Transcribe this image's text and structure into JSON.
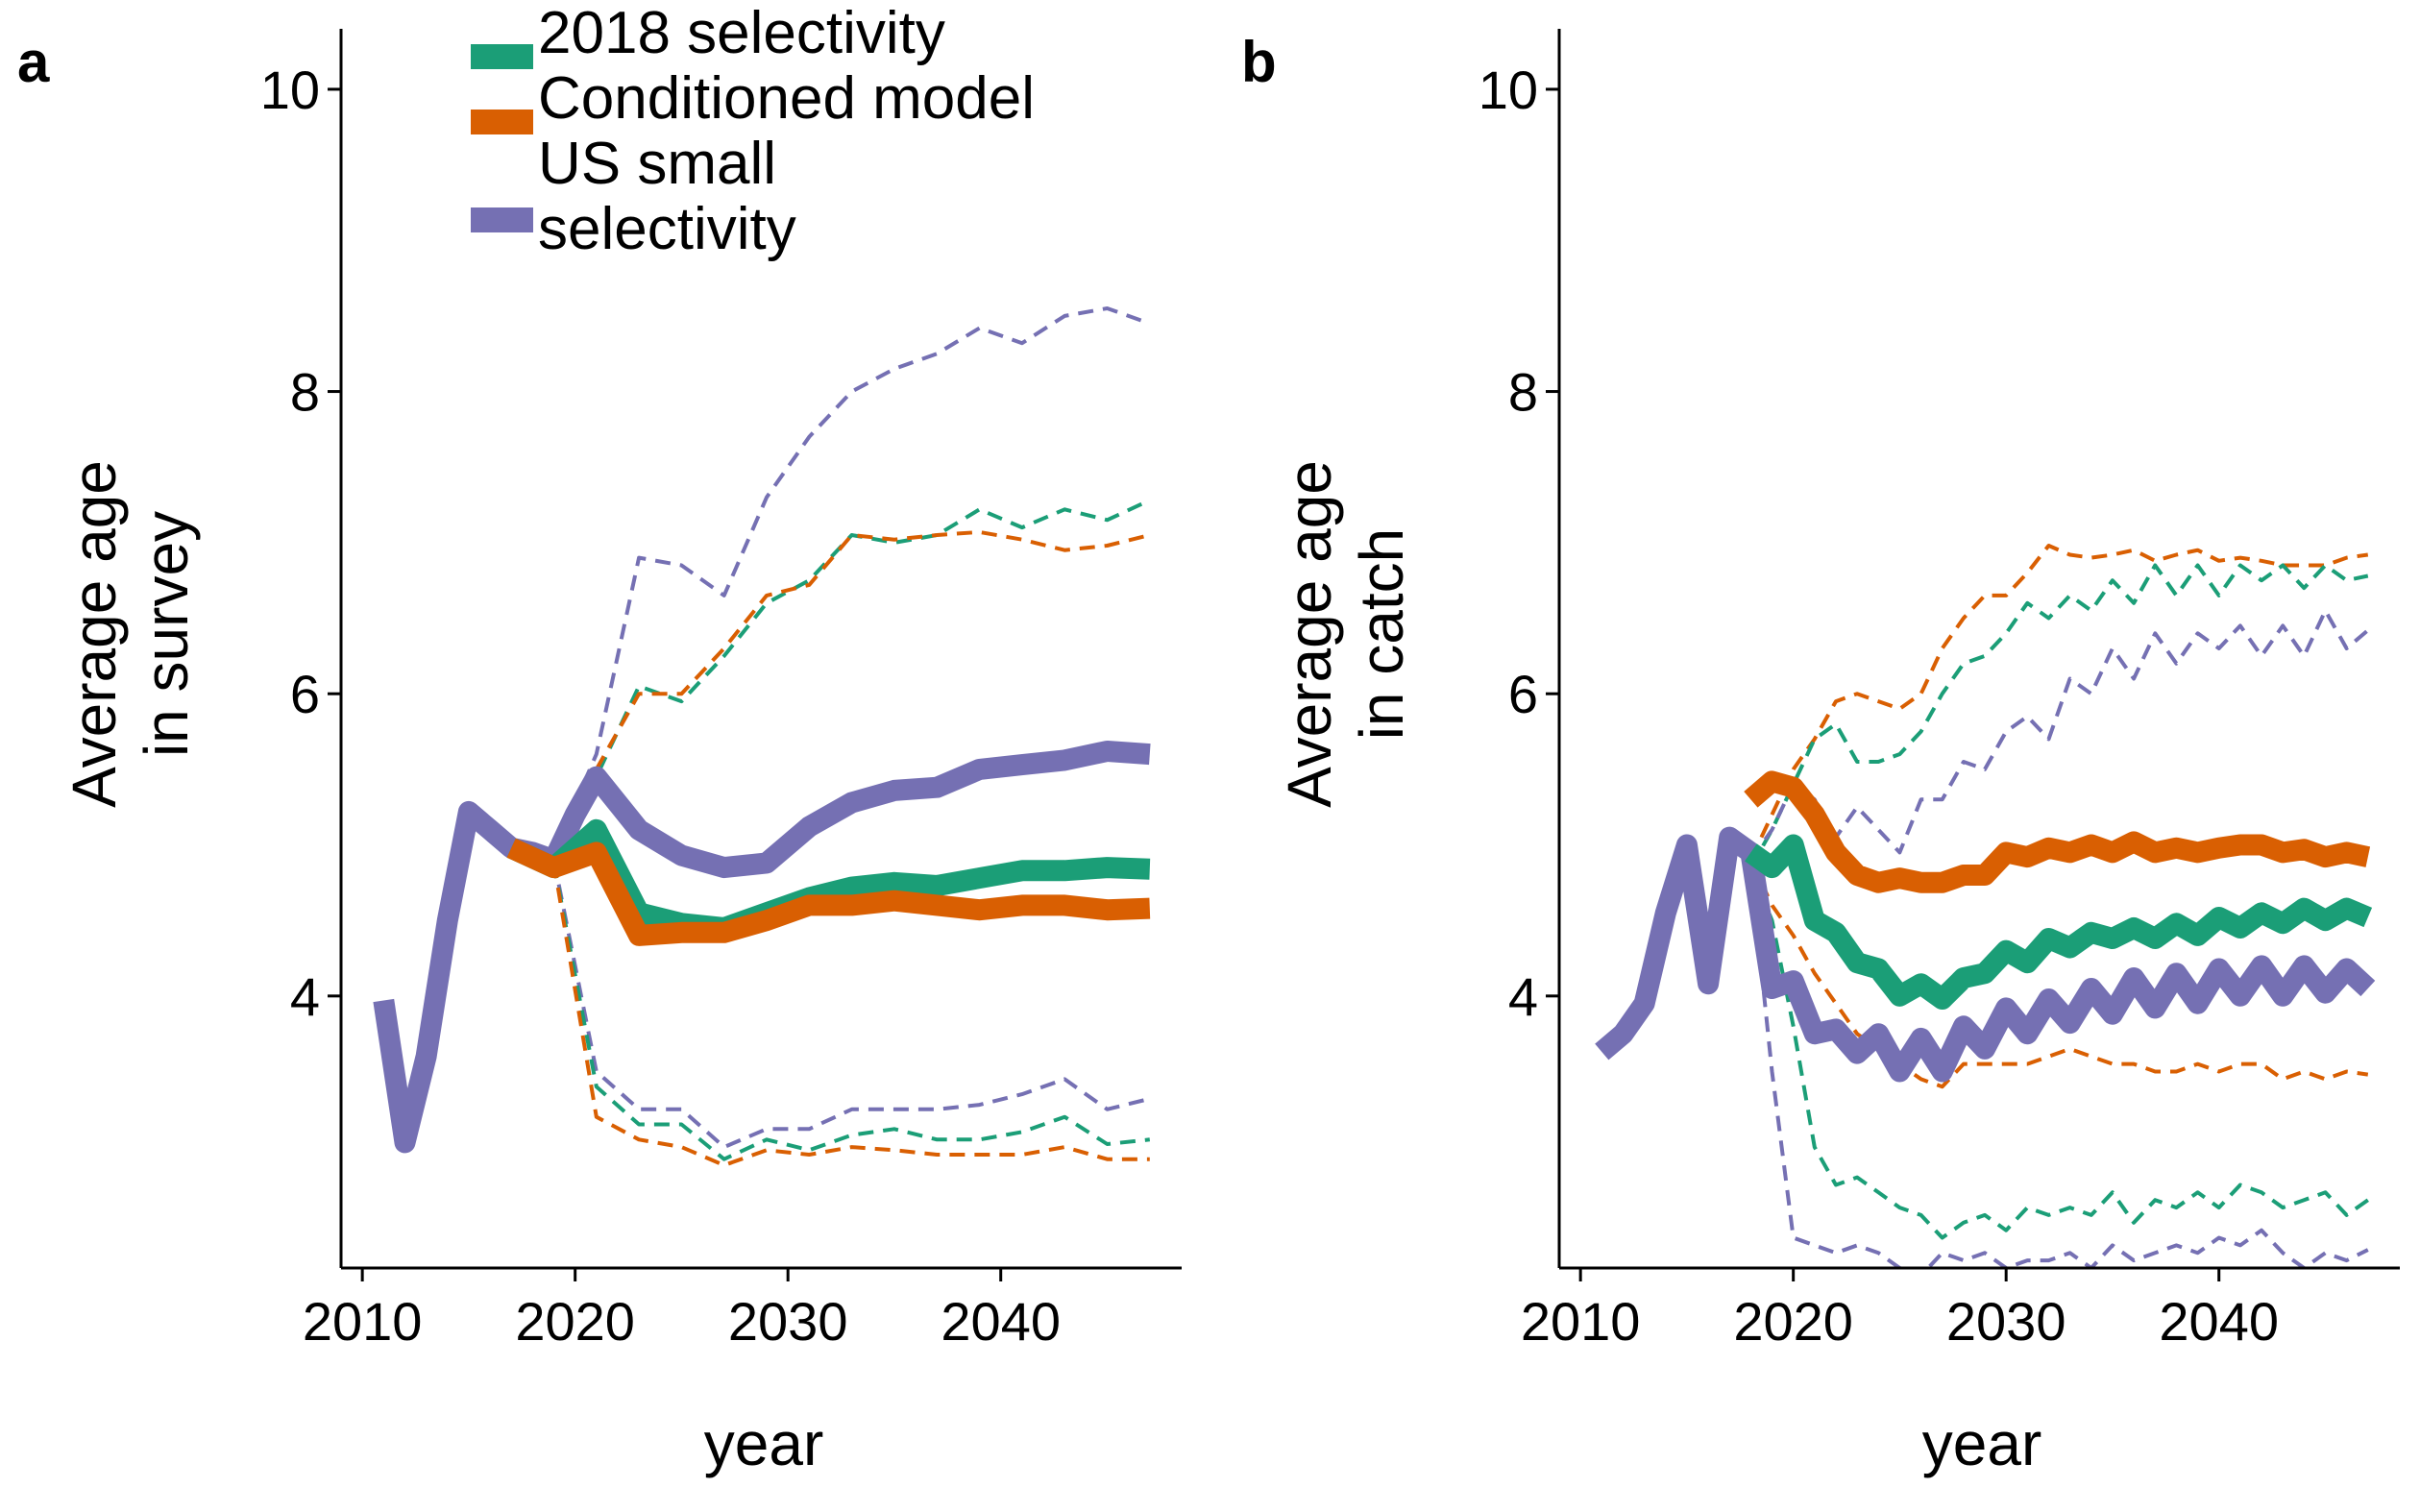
{
  "legend": {
    "placement": "top-left of panel a",
    "entries": [
      {
        "label": "2018 selectivity",
        "color": "#1b9e77"
      },
      {
        "label": "Conditioned model",
        "color": "#d95f02"
      },
      {
        "label": "US small selectivity",
        "color": "#7570b3"
      }
    ]
  },
  "chart_data": [
    {
      "panel": "a",
      "type": "line",
      "xlabel": "year",
      "ylabel": "Average age in survey",
      "xlim": [
        2009,
        2048.5
      ],
      "ylim": [
        2.2,
        10.4
      ],
      "xticks": [
        2010,
        2020,
        2030,
        2040
      ],
      "yticks": [
        4,
        6,
        8,
        10
      ],
      "grid": false,
      "series": [
        {
          "name": "US small selectivity",
          "color": "#7570b3",
          "kind": "median",
          "x": [
            2011,
            2012,
            2013,
            2014,
            2015,
            2016,
            2017,
            2018,
            2019,
            2020,
            2021,
            2023,
            2025,
            2027,
            2029,
            2031,
            2033,
            2035,
            2037,
            2039,
            2041,
            2043,
            2045,
            2047
          ],
          "y": [
            3.97,
            3.03,
            3.6,
            4.5,
            5.22,
            5.1,
            4.98,
            4.95,
            4.9,
            5.2,
            5.45,
            5.1,
            4.93,
            4.85,
            4.88,
            5.12,
            5.28,
            5.36,
            5.38,
            5.5,
            5.53,
            5.56,
            5.62,
            5.6
          ]
        },
        {
          "name": "2018 selectivity",
          "color": "#1b9e77",
          "kind": "median",
          "x": [
            2017,
            2019,
            2021,
            2023,
            2025,
            2027,
            2029,
            2031,
            2033,
            2035,
            2037,
            2039,
            2041,
            2043,
            2045,
            2047
          ],
          "y": [
            4.98,
            4.85,
            5.1,
            4.55,
            4.48,
            4.45,
            4.55,
            4.65,
            4.72,
            4.75,
            4.73,
            4.78,
            4.83,
            4.83,
            4.85,
            4.84
          ]
        },
        {
          "name": "Conditioned model",
          "color": "#d95f02",
          "kind": "median",
          "x": [
            2017,
            2019,
            2021,
            2023,
            2025,
            2027,
            2029,
            2031,
            2033,
            2035,
            2037,
            2039,
            2041,
            2043,
            2045,
            2047
          ],
          "y": [
            4.98,
            4.85,
            4.95,
            4.4,
            4.42,
            4.42,
            4.5,
            4.6,
            4.6,
            4.63,
            4.6,
            4.57,
            4.6,
            4.6,
            4.57,
            4.58
          ]
        },
        {
          "name": "US small selectivity",
          "color": "#7570b3",
          "kind": "upper",
          "x": [
            2019,
            2021,
            2023,
            2025,
            2027,
            2029,
            2031,
            2033,
            2035,
            2037,
            2039,
            2041,
            2043,
            2045,
            2047
          ],
          "y": [
            4.95,
            5.6,
            6.9,
            6.85,
            6.65,
            7.3,
            7.7,
            8.0,
            8.15,
            8.25,
            8.42,
            8.32,
            8.5,
            8.55,
            8.45
          ]
        },
        {
          "name": "2018 selectivity",
          "color": "#1b9e77",
          "kind": "upper",
          "x": [
            2019,
            2021,
            2023,
            2025,
            2027,
            2029,
            2031,
            2033,
            2035,
            2037,
            2039,
            2041,
            2043,
            2045,
            2047
          ],
          "y": [
            4.9,
            5.45,
            6.05,
            5.95,
            6.25,
            6.6,
            6.75,
            7.05,
            7.0,
            7.05,
            7.22,
            7.1,
            7.22,
            7.15,
            7.28
          ]
        },
        {
          "name": "Conditioned model",
          "color": "#d95f02",
          "kind": "upper",
          "x": [
            2019,
            2021,
            2023,
            2025,
            2027,
            2029,
            2031,
            2033,
            2035,
            2037,
            2039,
            2041,
            2043,
            2045,
            2047
          ],
          "y": [
            4.9,
            5.5,
            6.0,
            6.0,
            6.3,
            6.65,
            6.72,
            7.05,
            7.02,
            7.05,
            7.07,
            7.02,
            6.95,
            6.98,
            7.05
          ]
        },
        {
          "name": "US small selectivity",
          "color": "#7570b3",
          "kind": "lower",
          "x": [
            2019,
            2021,
            2023,
            2025,
            2027,
            2029,
            2031,
            2033,
            2035,
            2037,
            2039,
            2041,
            2043,
            2045,
            2047
          ],
          "y": [
            4.9,
            3.5,
            3.25,
            3.25,
            3.0,
            3.12,
            3.12,
            3.25,
            3.25,
            3.25,
            3.28,
            3.35,
            3.45,
            3.25,
            3.32
          ]
        },
        {
          "name": "2018 selectivity",
          "color": "#1b9e77",
          "kind": "lower",
          "x": [
            2019,
            2021,
            2023,
            2025,
            2027,
            2029,
            2031,
            2033,
            2035,
            2037,
            2039,
            2041,
            2043,
            2045,
            2047
          ],
          "y": [
            4.88,
            3.4,
            3.15,
            3.15,
            2.92,
            3.05,
            2.98,
            3.08,
            3.12,
            3.05,
            3.05,
            3.1,
            3.2,
            3.02,
            3.05
          ]
        },
        {
          "name": "Conditioned model",
          "color": "#d95f02",
          "kind": "lower",
          "x": [
            2019,
            2021,
            2023,
            2025,
            2027,
            2029,
            2031,
            2033,
            2035,
            2037,
            2039,
            2041,
            2043,
            2045,
            2047
          ],
          "y": [
            4.88,
            3.2,
            3.05,
            3.0,
            2.88,
            2.98,
            2.95,
            3.0,
            2.98,
            2.95,
            2.95,
            2.95,
            3.0,
            2.92,
            2.92
          ]
        }
      ]
    },
    {
      "panel": "b",
      "type": "line",
      "xlabel": "year",
      "ylabel": "Average age in catch",
      "xlim": [
        2009,
        2048.5
      ],
      "ylim": [
        2.2,
        10.4
      ],
      "xticks": [
        2010,
        2020,
        2030,
        2040
      ],
      "yticks": [
        4,
        6,
        8,
        10
      ],
      "grid": false,
      "series": [
        {
          "name": "US small selectivity",
          "color": "#7570b3",
          "kind": "median",
          "x": [
            2011,
            2012,
            2013,
            2014,
            2015,
            2016,
            2017,
            2018,
            2019,
            2020,
            2021,
            2022,
            2023,
            2024,
            2025,
            2026,
            2027,
            2028,
            2029,
            2030,
            2031,
            2032,
            2033,
            2034,
            2035,
            2036,
            2037,
            2038,
            2039,
            2040,
            2041,
            2042,
            2043,
            2044,
            2045,
            2046,
            2047
          ],
          "y": [
            3.63,
            3.75,
            3.95,
            4.55,
            5.0,
            4.08,
            5.05,
            4.95,
            4.05,
            4.1,
            3.75,
            3.78,
            3.62,
            3.75,
            3.5,
            3.72,
            3.5,
            3.8,
            3.65,
            3.92,
            3.75,
            3.98,
            3.82,
            4.05,
            3.88,
            4.12,
            3.92,
            4.15,
            3.95,
            4.18,
            4.0,
            4.2,
            4.0,
            4.2,
            4.02,
            4.18,
            4.05
          ]
        },
        {
          "name": "2018 selectivity",
          "color": "#1b9e77",
          "kind": "median",
          "x": [
            2018,
            2019,
            2020,
            2021,
            2022,
            2023,
            2024,
            2025,
            2026,
            2027,
            2028,
            2029,
            2030,
            2031,
            2032,
            2033,
            2034,
            2035,
            2036,
            2037,
            2038,
            2039,
            2040,
            2041,
            2042,
            2043,
            2044,
            2045,
            2046,
            2047
          ],
          "y": [
            4.95,
            4.85,
            5.0,
            4.5,
            4.42,
            4.22,
            4.18,
            4.0,
            4.08,
            3.98,
            4.12,
            4.15,
            4.3,
            4.22,
            4.38,
            4.32,
            4.42,
            4.38,
            4.45,
            4.38,
            4.48,
            4.4,
            4.52,
            4.45,
            4.55,
            4.48,
            4.58,
            4.5,
            4.58,
            4.52
          ]
        },
        {
          "name": "Conditioned model",
          "color": "#d95f02",
          "kind": "median",
          "x": [
            2018,
            2019,
            2020,
            2021,
            2022,
            2023,
            2024,
            2025,
            2026,
            2027,
            2028,
            2029,
            2030,
            2031,
            2032,
            2033,
            2034,
            2035,
            2036,
            2037,
            2038,
            2039,
            2040,
            2041,
            2042,
            2043,
            2044,
            2045,
            2046,
            2047
          ],
          "y": [
            5.3,
            5.42,
            5.38,
            5.2,
            4.95,
            4.8,
            4.75,
            4.78,
            4.75,
            4.75,
            4.8,
            4.8,
            4.95,
            4.92,
            4.98,
            4.95,
            5.0,
            4.95,
            5.02,
            4.95,
            4.98,
            4.95,
            4.98,
            5.0,
            5.0,
            4.95,
            4.97,
            4.92,
            4.95,
            4.92
          ]
        },
        {
          "name": "Conditioned model",
          "color": "#d95f02",
          "kind": "upper",
          "x": [
            2018,
            2019,
            2020,
            2021,
            2022,
            2023,
            2024,
            2025,
            2026,
            2027,
            2028,
            2029,
            2030,
            2031,
            2032,
            2033,
            2034,
            2035,
            2036,
            2037,
            2038,
            2039,
            2040,
            2041,
            2042,
            2043,
            2044,
            2045,
            2046,
            2047
          ],
          "y": [
            4.9,
            5.2,
            5.5,
            5.7,
            5.95,
            6.0,
            5.95,
            5.9,
            6.0,
            6.3,
            6.5,
            6.65,
            6.65,
            6.8,
            6.98,
            6.92,
            6.9,
            6.92,
            6.95,
            6.88,
            6.92,
            6.95,
            6.88,
            6.9,
            6.88,
            6.85,
            6.85,
            6.85,
            6.9,
            6.92
          ]
        },
        {
          "name": "2018 selectivity",
          "color": "#1b9e77",
          "kind": "upper",
          "x": [
            2018,
            2019,
            2020,
            2021,
            2022,
            2023,
            2024,
            2025,
            2026,
            2027,
            2028,
            2029,
            2030,
            2031,
            2032,
            2033,
            2034,
            2035,
            2036,
            2037,
            2038,
            2039,
            2040,
            2041,
            2042,
            2043,
            2044,
            2045,
            2046,
            2047
          ],
          "y": [
            4.85,
            5.1,
            5.4,
            5.7,
            5.8,
            5.55,
            5.55,
            5.6,
            5.75,
            6.0,
            6.2,
            6.25,
            6.4,
            6.6,
            6.5,
            6.65,
            6.55,
            6.75,
            6.6,
            6.85,
            6.65,
            6.85,
            6.65,
            6.85,
            6.75,
            6.85,
            6.7,
            6.85,
            6.75,
            6.78
          ]
        },
        {
          "name": "US small selectivity",
          "color": "#7570b3",
          "kind": "upper",
          "x": [
            2018,
            2019,
            2020,
            2021,
            2022,
            2023,
            2024,
            2025,
            2026,
            2027,
            2028,
            2029,
            2030,
            2031,
            2032,
            2033,
            2034,
            2035,
            2036,
            2037,
            2038,
            2039,
            2040,
            2041,
            2042,
            2043,
            2044,
            2045,
            2046,
            2047
          ],
          "y": [
            4.9,
            5.1,
            5.4,
            5.3,
            5.05,
            5.25,
            5.1,
            4.95,
            5.3,
            5.3,
            5.55,
            5.5,
            5.75,
            5.85,
            5.7,
            6.1,
            6.0,
            6.3,
            6.1,
            6.4,
            6.2,
            6.4,
            6.3,
            6.45,
            6.25,
            6.45,
            6.25,
            6.55,
            6.3,
            6.42
          ]
        },
        {
          "name": "Conditioned model",
          "color": "#d95f02",
          "kind": "lower",
          "x": [
            2018,
            2019,
            2020,
            2021,
            2022,
            2023,
            2024,
            2025,
            2026,
            2027,
            2028,
            2029,
            2030,
            2031,
            2032,
            2033,
            2034,
            2035,
            2036,
            2037,
            2038,
            2039,
            2040,
            2041,
            2042,
            2043,
            2044,
            2045,
            2046,
            2047
          ],
          "y": [
            4.9,
            4.6,
            4.4,
            4.15,
            3.95,
            3.75,
            3.65,
            3.55,
            3.45,
            3.4,
            3.55,
            3.55,
            3.55,
            3.55,
            3.6,
            3.65,
            3.6,
            3.55,
            3.55,
            3.5,
            3.5,
            3.55,
            3.5,
            3.55,
            3.55,
            3.45,
            3.5,
            3.45,
            3.5,
            3.48
          ]
        },
        {
          "name": "2018 selectivity",
          "color": "#1b9e77",
          "kind": "lower",
          "x": [
            2018,
            2019,
            2020,
            2021,
            2022,
            2023,
            2024,
            2025,
            2026,
            2027,
            2028,
            2029,
            2030,
            2031,
            2032,
            2033,
            2034,
            2035,
            2036,
            2037,
            2038,
            2039,
            2040,
            2041,
            2042,
            2043,
            2044,
            2045,
            2046,
            2047
          ],
          "y": [
            4.85,
            4.5,
            3.8,
            3.0,
            2.75,
            2.8,
            2.7,
            2.6,
            2.55,
            2.4,
            2.5,
            2.55,
            2.45,
            2.6,
            2.55,
            2.6,
            2.55,
            2.7,
            2.5,
            2.65,
            2.6,
            2.7,
            2.6,
            2.75,
            2.7,
            2.6,
            2.65,
            2.7,
            2.55,
            2.65
          ]
        },
        {
          "name": "US small selectivity",
          "color": "#7570b3",
          "kind": "lower",
          "x": [
            2018,
            2019,
            2020,
            2021,
            2022,
            2023,
            2024,
            2025,
            2026,
            2027,
            2028,
            2029,
            2030,
            2031,
            2032,
            2033,
            2034,
            2035,
            2036,
            2037,
            2038,
            2039,
            2040,
            2041,
            2042,
            2043,
            2044,
            2045,
            2046,
            2047
          ],
          "y": [
            4.85,
            3.5,
            2.4,
            2.35,
            2.3,
            2.35,
            2.3,
            2.2,
            2.15,
            2.3,
            2.25,
            2.3,
            2.2,
            2.25,
            2.25,
            2.3,
            2.2,
            2.35,
            2.25,
            2.3,
            2.35,
            2.3,
            2.4,
            2.35,
            2.45,
            2.3,
            2.2,
            2.3,
            2.25,
            2.32
          ]
        }
      ]
    }
  ]
}
